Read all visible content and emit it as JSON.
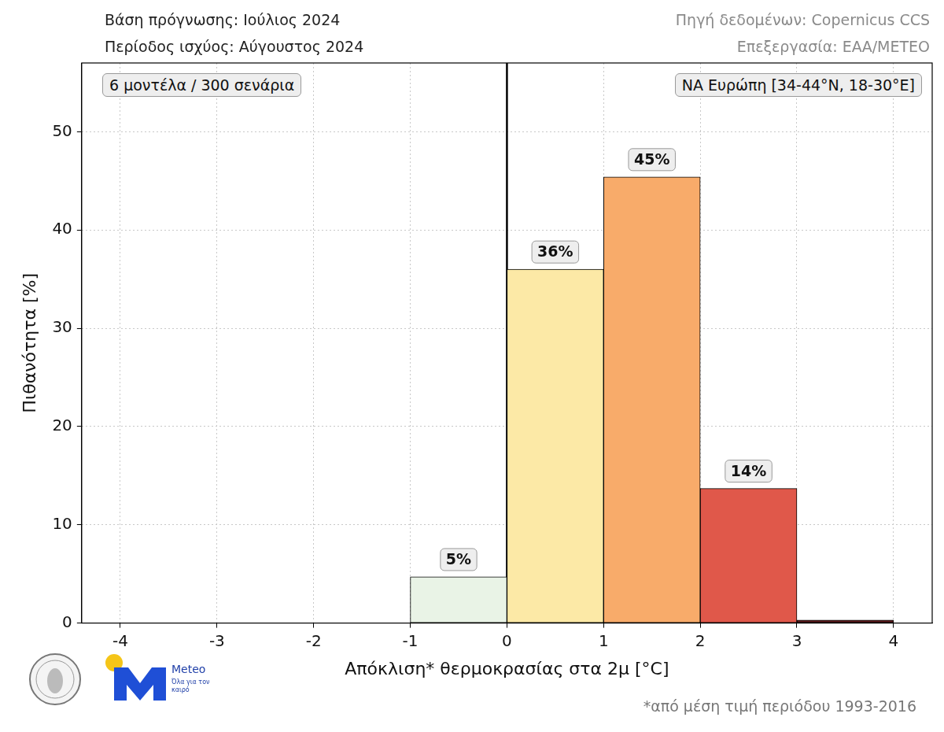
{
  "chart_data": {
    "type": "histogram",
    "header_left": [
      "Βάση πρόγνωσης: Ιούλιος 2024",
      "Περίοδος ισχύος: Αύγουστος 2024"
    ],
    "header_right": [
      "Πηγή δεδομένων: Copernicus CCS",
      "Επεξεργασία: ΕΑΑ/METEO"
    ],
    "annotations": [
      "6 μοντέλα / 300 σενάρια",
      "ΝΑ Ευρώπη [34-44°N, 18-30°E]"
    ],
    "x_label": "Απόκλιση* θερμοκρασίας στα 2μ [°C]",
    "y_label": "Πιθανότητα [%]",
    "footnote": "*από μέση τιμή περιόδου 1993-2016",
    "logo": {
      "name": "Meteo",
      "slogan": "Όλα για τον καιρό"
    },
    "bins": [
      -1,
      0,
      1,
      2,
      3,
      4
    ],
    "values": [
      4.7,
      36,
      45.4,
      13.7,
      0.3
    ],
    "value_labels": [
      "5%",
      "36%",
      "45%",
      "14%",
      null
    ],
    "colors": [
      "#e9f3e6",
      "#fce9a6",
      "#f8ab6a",
      "#e0584a",
      "#5c1a1c"
    ],
    "vline": 0,
    "xlim": [
      -4.4,
      4.4
    ],
    "xticks": [
      -4,
      -3,
      -2,
      -1,
      0,
      1,
      2,
      3,
      4
    ],
    "ylim": [
      0,
      57
    ],
    "yticks": [
      0,
      10,
      20,
      30,
      40,
      50
    ],
    "grid": true,
    "data_labels": true
  }
}
